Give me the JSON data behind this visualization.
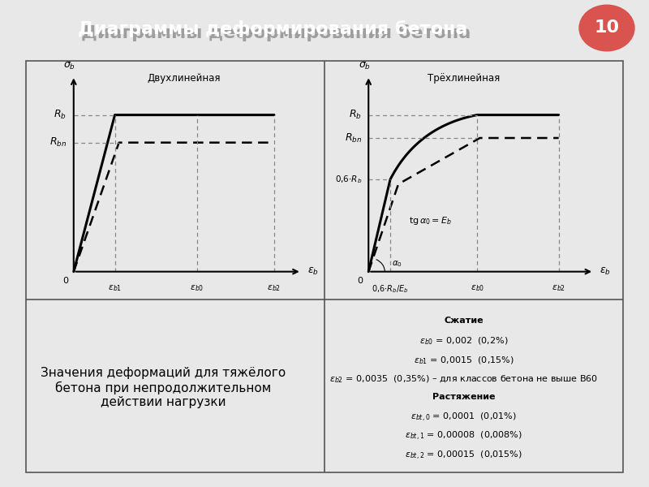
{
  "title": "Диаграммы деформирования бетона",
  "slide_number": "10",
  "header_bg": "#a8a8a8",
  "header_text_color": "#ffffff",
  "slide_num_bg": "#d9534f",
  "diagram1_title": "Двухлинейная",
  "diagram2_title": "Трёхлинейная",
  "left_panel_text": "Значения деформаций для тяжёлого\nбетона при непродолжительном\nдействии нагрузки",
  "background_color": "#e8e8e8",
  "diagram_bg": "#ffffff",
  "border_color": "#555555"
}
